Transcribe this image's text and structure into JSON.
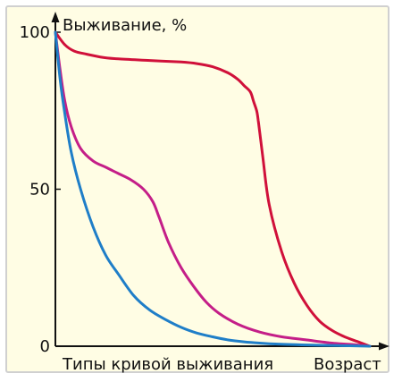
{
  "chart_data": {
    "type": "line",
    "ylabel": "Выживание, %",
    "xlabel_left": "Типы кривой выживания",
    "xlabel": "Возраст",
    "y_ticks": [
      "100",
      "50",
      "0"
    ],
    "ylim": [
      0,
      100
    ],
    "xlim": [
      0,
      100
    ],
    "grid": false,
    "series": [
      {
        "color": "#d0103a",
        "x": [
          0,
          3,
          6,
          10,
          15,
          20,
          30,
          40,
          45,
          50,
          55,
          58,
          60,
          62,
          63,
          64,
          64.5,
          65,
          66,
          68,
          72,
          76,
          80,
          84,
          88,
          92,
          96,
          100
        ],
        "y": [
          100,
          96,
          94,
          93,
          92,
          91.5,
          91,
          90.5,
          90,
          89,
          87,
          85,
          83,
          81,
          78,
          75,
          72,
          68,
          60,
          45,
          30,
          20,
          13,
          8,
          5,
          3,
          1.5,
          0
        ]
      },
      {
        "color": "#c41e88",
        "x": [
          0,
          1.5,
          3,
          5,
          8,
          12,
          16,
          20,
          24,
          28,
          31,
          33,
          36,
          40,
          44,
          48,
          52,
          58,
          65,
          72,
          80,
          88,
          95,
          100
        ],
        "y": [
          100,
          88,
          78,
          70,
          63,
          59,
          57,
          55,
          53,
          50,
          46,
          41,
          33,
          25,
          19,
          14,
          10.5,
          7,
          4.5,
          3,
          2,
          1,
          0.5,
          0
        ]
      },
      {
        "color": "#1f7ec8",
        "x": [
          0,
          1.5,
          3,
          5,
          8,
          12,
          16,
          20,
          25,
          30,
          35,
          40,
          45,
          50,
          55,
          60,
          65,
          70,
          80,
          90,
          100
        ],
        "y": [
          100,
          85,
          74,
          62,
          50,
          38,
          29,
          23,
          16,
          11.5,
          8.5,
          6,
          4.2,
          3,
          2,
          1.4,
          1,
          0.7,
          0.4,
          0.2,
          0
        ]
      }
    ]
  }
}
